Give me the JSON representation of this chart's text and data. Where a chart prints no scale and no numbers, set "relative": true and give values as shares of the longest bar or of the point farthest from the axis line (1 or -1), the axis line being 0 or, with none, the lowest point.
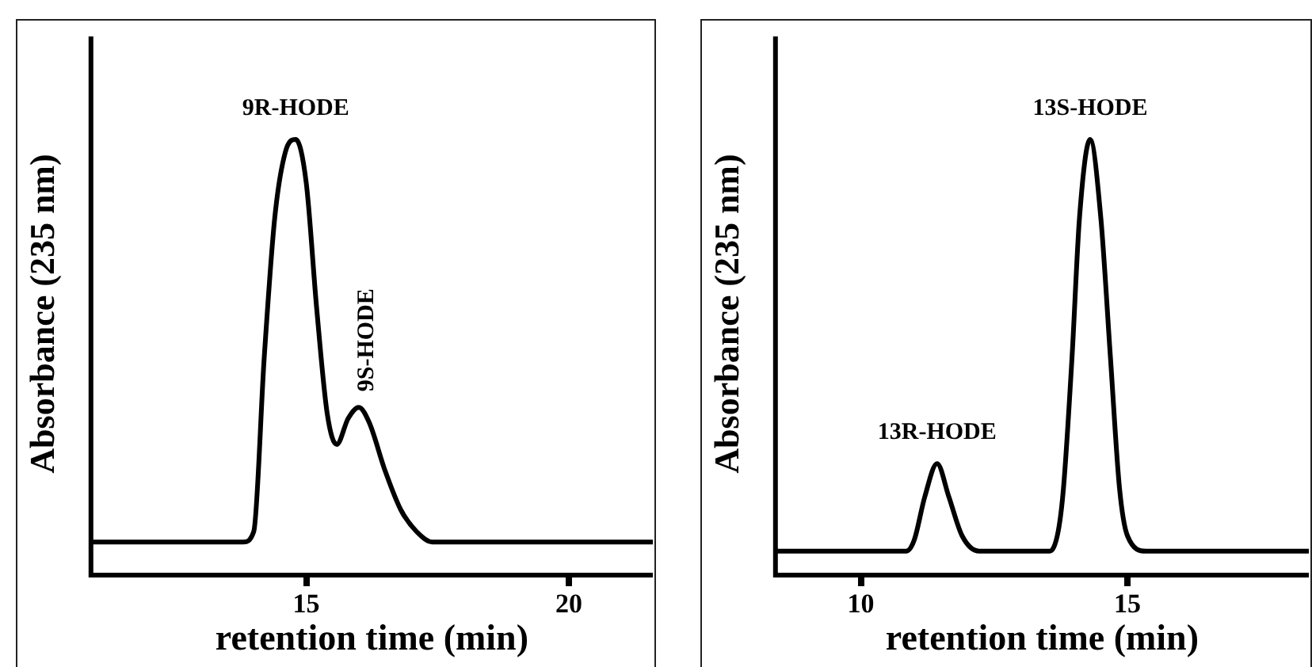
{
  "chart_data": [
    {
      "type": "line",
      "relative": true,
      "xlabel": "retention time (min)",
      "ylabel": "Absorbance (235 nm)",
      "xlim": [
        10.9,
        21.6
      ],
      "xticks": [
        15,
        20
      ],
      "grid": false,
      "legend": false,
      "marker": "none",
      "line_style": "solid",
      "series": [
        {
          "color": "#000000",
          "x": [
            10.9,
            13.8,
            14.0,
            14.2,
            14.4,
            14.6,
            14.8,
            15.0,
            15.2,
            15.4,
            15.58,
            15.8,
            16.0,
            16.2,
            16.5,
            16.8,
            17.1,
            17.4,
            21.6
          ],
          "values": [
            0.076,
            0.076,
            0.1,
            0.5,
            0.82,
            0.97,
            1.0,
            0.9,
            0.61,
            0.37,
            0.3,
            0.36,
            0.385,
            0.35,
            0.24,
            0.15,
            0.1,
            0.076,
            0.076
          ]
        }
      ],
      "annotations": [
        {
          "text": "9R-HODE",
          "x": 14.8,
          "y": 1.0
        },
        {
          "text": "9S-HODE",
          "x": 16.0,
          "y": 0.385
        }
      ]
    },
    {
      "type": "line",
      "relative": true,
      "xlabel": "retention time (min)",
      "ylabel": "Absorbance (235 nm)",
      "xlim": [
        8.4,
        18.4
      ],
      "xticks": [
        10,
        15
      ],
      "grid": false,
      "legend": false,
      "marker": "none",
      "line_style": "solid",
      "series": [
        {
          "color": "#000000",
          "x": [
            8.4,
            10.85,
            11.0,
            11.2,
            11.43,
            11.65,
            11.9,
            12.22,
            13.54,
            13.7,
            13.8,
            13.96,
            14.1,
            14.3,
            14.5,
            14.68,
            14.85,
            15.0,
            15.35,
            18.4
          ],
          "values": [
            0.055,
            0.055,
            0.08,
            0.18,
            0.256,
            0.18,
            0.09,
            0.055,
            0.055,
            0.1,
            0.2,
            0.5,
            0.82,
            1.0,
            0.82,
            0.5,
            0.2,
            0.09,
            0.055,
            0.055
          ]
        }
      ],
      "annotations": [
        {
          "text": "13R-HODE",
          "x": 11.43,
          "y": 0.256
        },
        {
          "text": "13S-HODE",
          "x": 14.3,
          "y": 1.0
        }
      ]
    }
  ]
}
